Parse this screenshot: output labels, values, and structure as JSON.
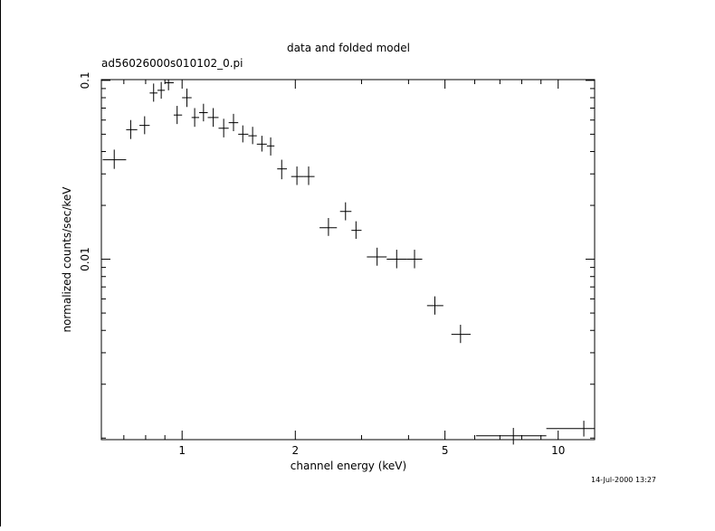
{
  "chart_data": {
    "type": "scatter",
    "title": "data and folded model",
    "subtitle": "ad56026000s010102_0.pi",
    "xlabel": "channel energy (keV)",
    "ylabel": "normalized counts/sec/keV",
    "x_scale": "log",
    "y_scale": "log",
    "xlim": [
      0.61,
      12.5
    ],
    "ylim": [
      0.00098,
      0.101
    ],
    "x_ticks": [
      {
        "value": 1,
        "label": "1"
      },
      {
        "value": 2,
        "label": "2"
      },
      {
        "value": 5,
        "label": "5"
      },
      {
        "value": 10,
        "label": "10"
      }
    ],
    "y_ticks": [
      {
        "value": 0.1,
        "label": "0.1"
      },
      {
        "value": 0.01,
        "label": "0.01"
      }
    ],
    "grid": false,
    "series": [
      {
        "points": [
          {
            "x": 0.66,
            "xlo": 0.615,
            "xhi": 0.71,
            "y": 0.036,
            "ylo": 0.032,
            "yhi": 0.041
          },
          {
            "x": 0.73,
            "xlo": 0.71,
            "xhi": 0.76,
            "y": 0.053,
            "ylo": 0.047,
            "yhi": 0.06
          },
          {
            "x": 0.795,
            "xlo": 0.77,
            "xhi": 0.82,
            "y": 0.056,
            "ylo": 0.05,
            "yhi": 0.063
          },
          {
            "x": 0.84,
            "xlo": 0.82,
            "xhi": 0.86,
            "y": 0.085,
            "ylo": 0.076,
            "yhi": 0.096
          },
          {
            "x": 0.88,
            "xlo": 0.86,
            "xhi": 0.9,
            "y": 0.088,
            "ylo": 0.079,
            "yhi": 0.098
          },
          {
            "x": 0.92,
            "xlo": 0.9,
            "xhi": 0.95,
            "y": 0.097,
            "ylo": 0.088,
            "yhi": 0.101
          },
          {
            "x": 0.97,
            "xlo": 0.95,
            "xhi": 1.0,
            "y": 0.064,
            "ylo": 0.057,
            "yhi": 0.072
          },
          {
            "x": 1.03,
            "xlo": 1.0,
            "xhi": 1.06,
            "y": 0.08,
            "ylo": 0.071,
            "yhi": 0.09
          },
          {
            "x": 1.08,
            "xlo": 1.06,
            "xhi": 1.11,
            "y": 0.062,
            "ylo": 0.055,
            "yhi": 0.07
          },
          {
            "x": 1.14,
            "xlo": 1.11,
            "xhi": 1.17,
            "y": 0.066,
            "ylo": 0.059,
            "yhi": 0.074
          },
          {
            "x": 1.21,
            "xlo": 1.17,
            "xhi": 1.25,
            "y": 0.062,
            "ylo": 0.055,
            "yhi": 0.07
          },
          {
            "x": 1.29,
            "xlo": 1.25,
            "xhi": 1.33,
            "y": 0.054,
            "ylo": 0.048,
            "yhi": 0.061
          },
          {
            "x": 1.37,
            "xlo": 1.33,
            "xhi": 1.41,
            "y": 0.058,
            "ylo": 0.052,
            "yhi": 0.065
          },
          {
            "x": 1.45,
            "xlo": 1.41,
            "xhi": 1.5,
            "y": 0.05,
            "ylo": 0.045,
            "yhi": 0.056
          },
          {
            "x": 1.54,
            "xlo": 1.5,
            "xhi": 1.58,
            "y": 0.049,
            "ylo": 0.044,
            "yhi": 0.055
          },
          {
            "x": 1.63,
            "xlo": 1.58,
            "xhi": 1.68,
            "y": 0.044,
            "ylo": 0.04,
            "yhi": 0.049
          },
          {
            "x": 1.72,
            "xlo": 1.68,
            "xhi": 1.76,
            "y": 0.043,
            "ylo": 0.038,
            "yhi": 0.048
          },
          {
            "x": 1.84,
            "xlo": 1.79,
            "xhi": 1.9,
            "y": 0.032,
            "ylo": 0.028,
            "yhi": 0.036
          },
          {
            "x": 2.02,
            "xlo": 1.95,
            "xhi": 2.1,
            "y": 0.029,
            "ylo": 0.026,
            "yhi": 0.033
          },
          {
            "x": 2.17,
            "xlo": 2.1,
            "xhi": 2.25,
            "y": 0.029,
            "ylo": 0.026,
            "yhi": 0.033
          },
          {
            "x": 2.45,
            "xlo": 2.32,
            "xhi": 2.58,
            "y": 0.015,
            "ylo": 0.0135,
            "yhi": 0.017
          },
          {
            "x": 2.72,
            "xlo": 2.63,
            "xhi": 2.82,
            "y": 0.0185,
            "ylo": 0.0165,
            "yhi": 0.0208
          },
          {
            "x": 2.9,
            "xlo": 2.82,
            "xhi": 3.0,
            "y": 0.0145,
            "ylo": 0.013,
            "yhi": 0.0163
          },
          {
            "x": 3.3,
            "xlo": 3.1,
            "xhi": 3.5,
            "y": 0.0103,
            "ylo": 0.0092,
            "yhi": 0.0116
          },
          {
            "x": 3.72,
            "xlo": 3.5,
            "xhi": 3.95,
            "y": 0.01,
            "ylo": 0.0089,
            "yhi": 0.0113
          },
          {
            "x": 4.15,
            "xlo": 3.95,
            "xhi": 4.35,
            "y": 0.01,
            "ylo": 0.0089,
            "yhi": 0.0113
          },
          {
            "x": 4.7,
            "xlo": 4.48,
            "xhi": 4.95,
            "y": 0.0055,
            "ylo": 0.0049,
            "yhi": 0.0062
          },
          {
            "x": 5.5,
            "xlo": 5.2,
            "xhi": 5.85,
            "y": 0.0038,
            "ylo": 0.0034,
            "yhi": 0.0043
          },
          {
            "x": 7.6,
            "xlo": 6.05,
            "xhi": 9.3,
            "y": 0.00103,
            "ylo": 0.00092,
            "yhi": 0.00114
          },
          {
            "x": 11.7,
            "xlo": 9.3,
            "xhi": 12.5,
            "y": 0.00113,
            "ylo": 0.00102,
            "yhi": 0.00125
          }
        ]
      }
    ]
  },
  "footer": {
    "timestamp": "14-Jul-2000 13:27"
  },
  "colors": {
    "background": "#ffffff",
    "foreground": "#000000"
  }
}
